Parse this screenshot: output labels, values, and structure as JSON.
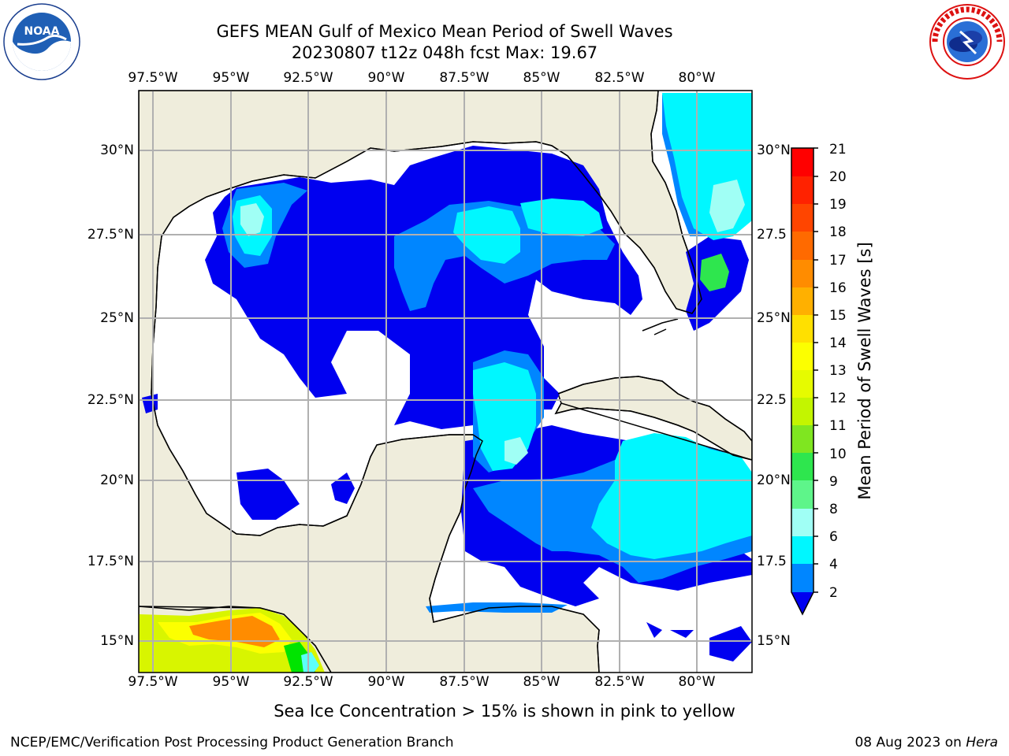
{
  "title": "GEFS MEAN Gulf of Mexico Mean Period of Swell Waves",
  "subtitle": "20230807 t12z 048h fcst   Max: 19.67",
  "logos": {
    "left": {
      "name": "noaa-logo",
      "text": "NOAA",
      "ring_text": "NATIONAL OCEANIC AND ATMOSPHERIC ADMINISTRATION · U.S. DEPARTMENT OF COMMERCE"
    },
    "right": {
      "name": "nws-logo",
      "ring_text": "NATIONAL WEATHER SERVICE"
    }
  },
  "map": {
    "lon_ticks": [
      "97.5°W",
      "95°W",
      "92.5°W",
      "90°W",
      "87.5°W",
      "85°W",
      "82.5°W",
      "80°W"
    ],
    "lat_ticks_left": [
      "30°N",
      "27.5°N",
      "25°N",
      "22.5°N",
      "20°N",
      "17.5°N",
      "15°N"
    ],
    "lat_ticks_right": [
      "30°N",
      "27.5",
      "25°N",
      "22.5",
      "20°N",
      "17.5",
      "15°N"
    ],
    "land_color": "#efeddc",
    "grid_color": "#b0b0b0"
  },
  "colorbar": {
    "label": "Mean Period of Swell Waves [s]",
    "ticks": [
      "21",
      "20",
      "19",
      "18",
      "17",
      "16",
      "15",
      "14",
      "13",
      "12",
      "11",
      "10",
      "9",
      "8",
      "6",
      "4",
      "2"
    ],
    "colors": [
      "#ff0000",
      "#ff2200",
      "#ff4500",
      "#ff6a00",
      "#ff8c00",
      "#ffb000",
      "#ffe000",
      "#fcff00",
      "#e6fb00",
      "#c3f500",
      "#7fe620",
      "#00e400",
      "#2ee64e",
      "#5ef58a",
      "#a0fff5",
      "#5cfffa",
      "#00f7ff",
      "#0086ff",
      "#0000f0"
    ]
  },
  "caption": "Sea Ice Concentration > 15% is shown in pink to yellow",
  "footer_left": "NCEP/EMC/Verification Post Processing Product Generation Branch",
  "footer_right_date": "08 Aug 2023 on ",
  "footer_right_host": "Hera"
}
